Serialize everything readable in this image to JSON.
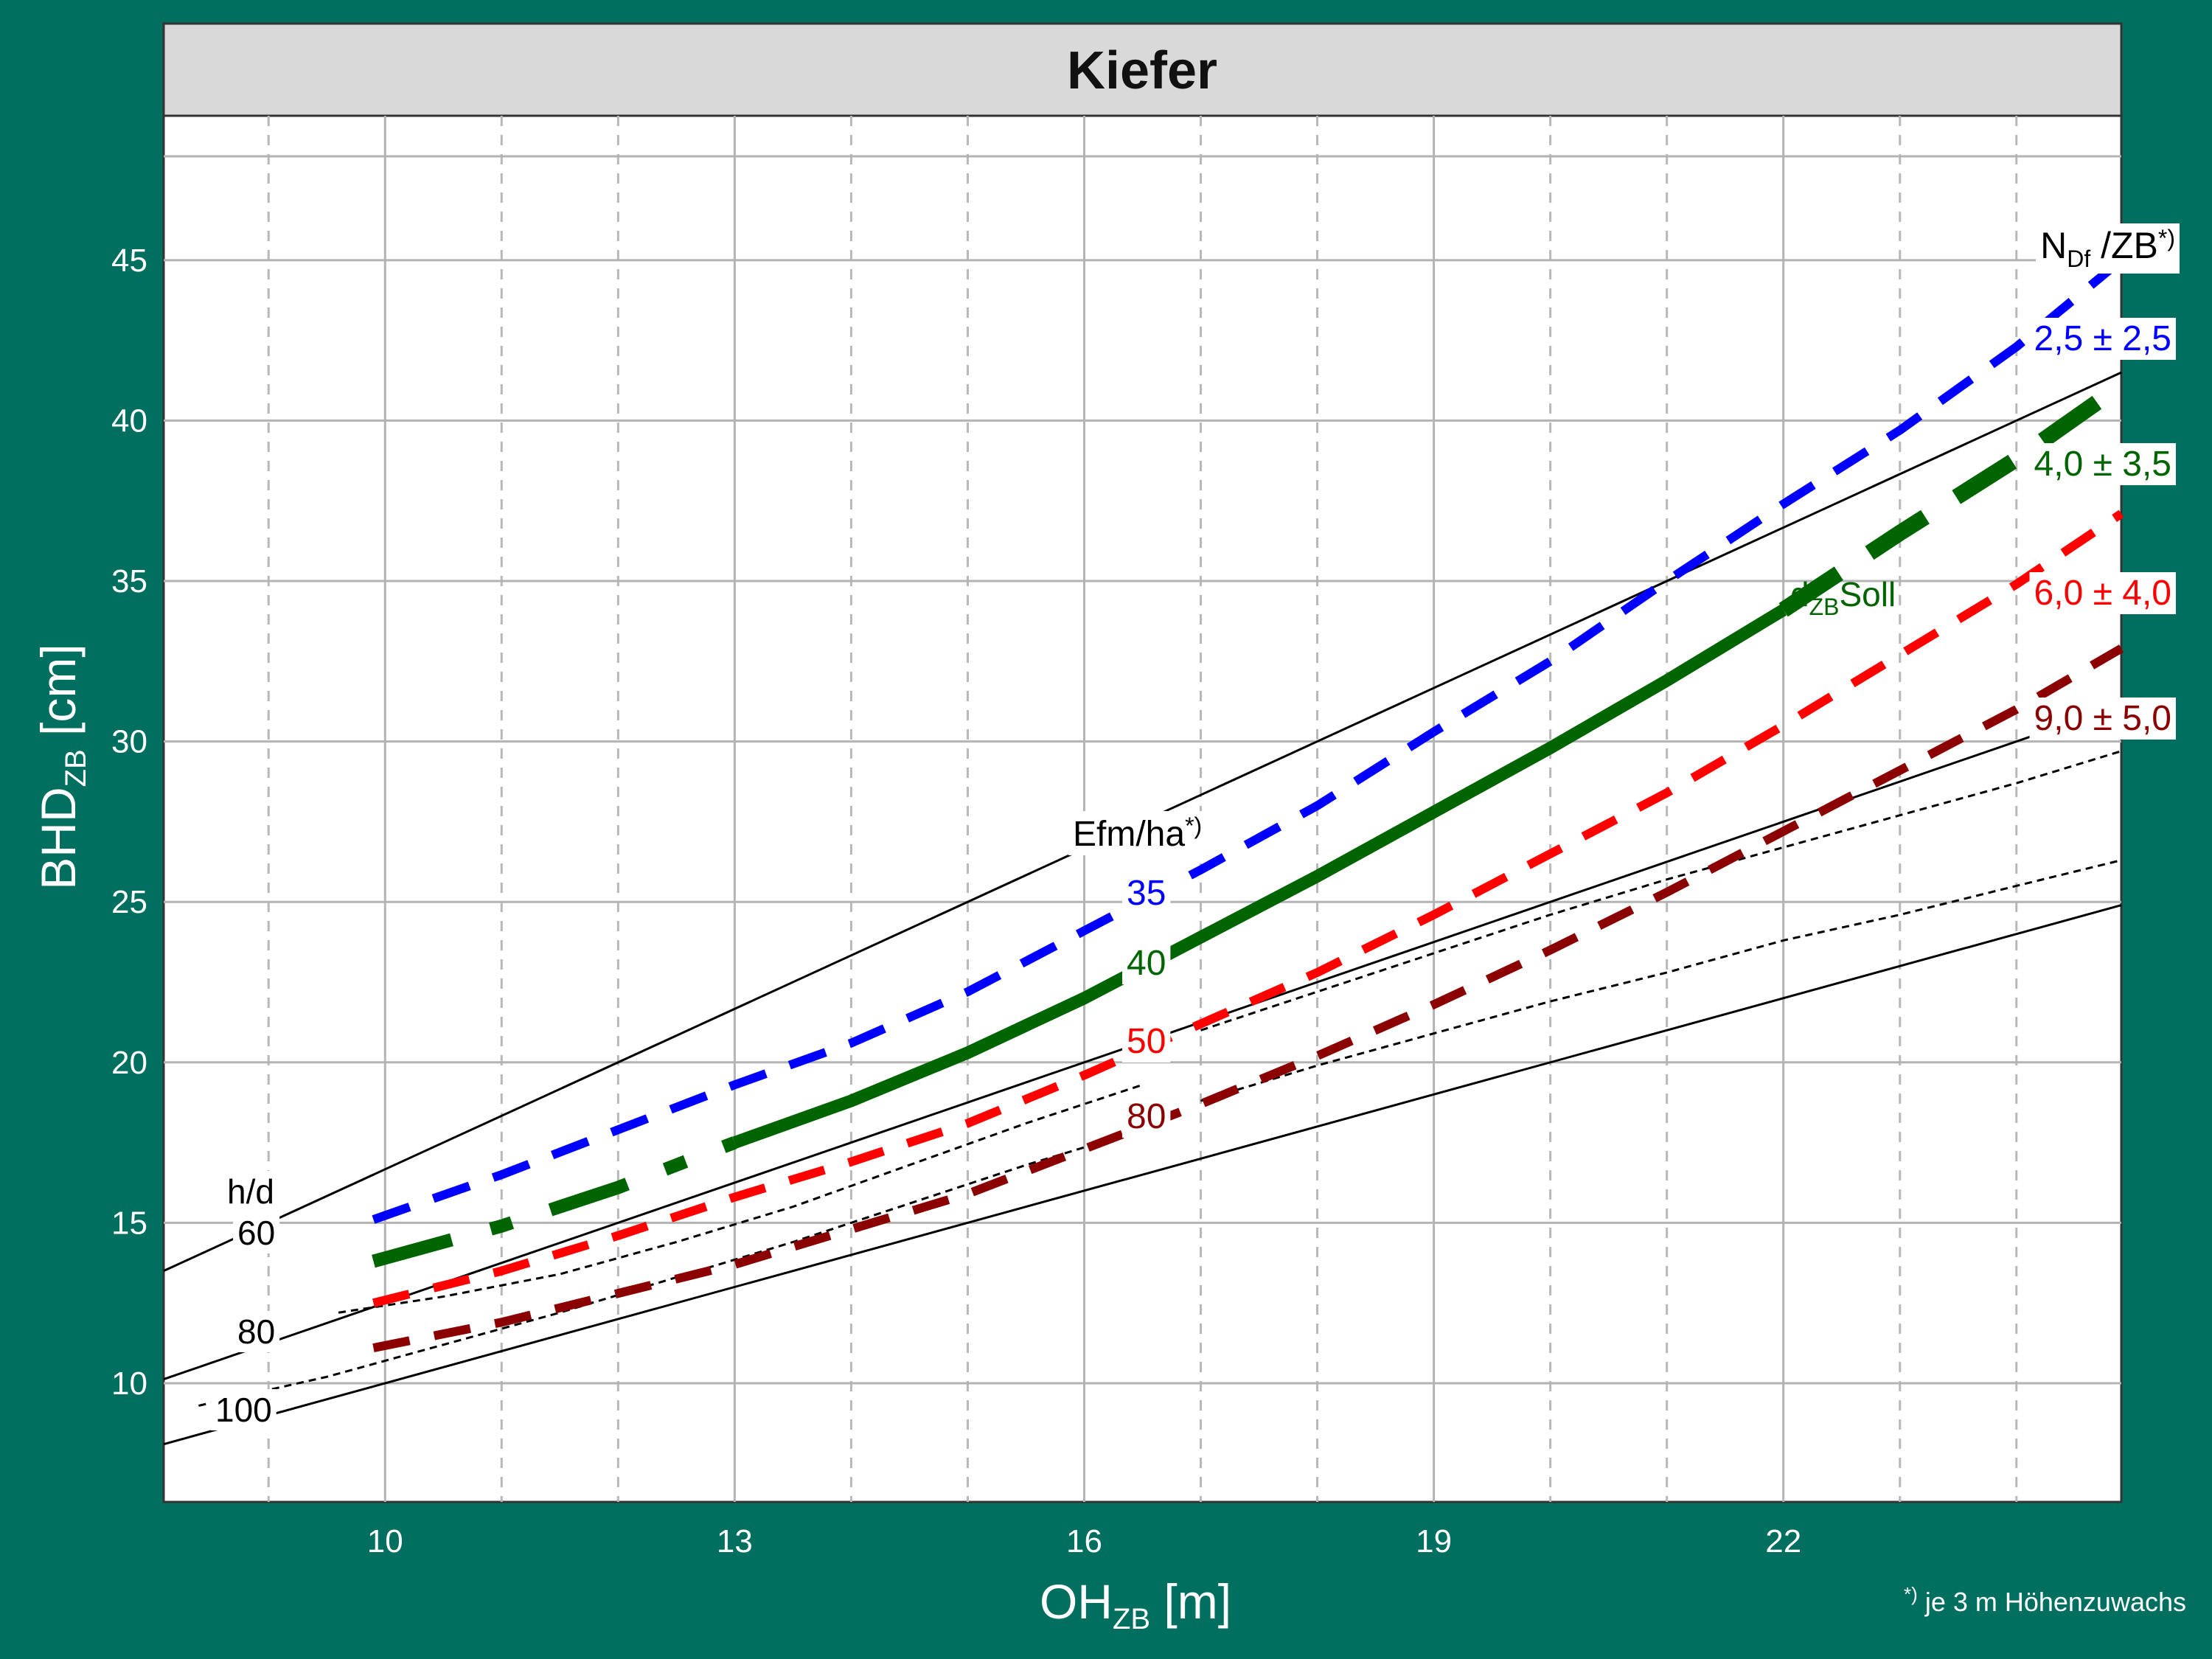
{
  "chart_data": {
    "type": "line",
    "title": "Kiefer",
    "xlabel": {
      "main": "OH",
      "sub": "ZB",
      "unit": " [m]"
    },
    "ylabel": {
      "main": "BHD",
      "sub": "ZB",
      "unit": " [cm]"
    },
    "footnote": {
      "sup": "*)",
      "text": " je 3 m Höhenzuwachs"
    },
    "xlim": [
      8.1,
      24.9
    ],
    "ylim": [
      6.3,
      49.5
    ],
    "x_ticks": [
      10,
      13,
      16,
      19,
      22
    ],
    "y_ticks": [
      10,
      15,
      20,
      25,
      30,
      35,
      40,
      45
    ],
    "grid": true,
    "hd_title": "h/d",
    "hd_lines": [
      {
        "label": "60",
        "points": [
          [
            8.1,
            13.5
          ],
          [
            24.9,
            41.5
          ]
        ]
      },
      {
        "label": "80",
        "points": [
          [
            8.1,
            10.125
          ],
          [
            24.9,
            31.125
          ]
        ]
      },
      {
        "label": "100",
        "points": [
          [
            8.1,
            8.1
          ],
          [
            24.9,
            24.9
          ]
        ]
      }
    ],
    "efm_title": {
      "main": "Efm/ha",
      "sup": "*)"
    },
    "efm_labels": [
      {
        "label": "35",
        "color": "#0000FF"
      },
      {
        "label": "40",
        "color": "#006400"
      },
      {
        "label": "50",
        "color": "#FF0000"
      },
      {
        "label": "80",
        "color": "#8B0000"
      }
    ],
    "efm_lines": [
      {
        "x": [
          9.6,
          10.5,
          11.5,
          12.5,
          13.5,
          14.5,
          15.5,
          16.5
        ],
        "y": [
          12.2,
          12.7,
          13.4,
          14.4,
          15.5,
          16.8,
          18.1,
          19.3
        ]
      },
      {
        "x": [
          17.0,
          18.0,
          19.0,
          20.0,
          21.0,
          22.0,
          23.0,
          24.0,
          24.9
        ],
        "y": [
          21.0,
          22.2,
          23.4,
          24.6,
          25.7,
          26.7,
          27.7,
          28.7,
          29.7
        ]
      },
      {
        "x": [
          8.4,
          9.5,
          10.5,
          11.5,
          12.5,
          13.5,
          14.5,
          15.5,
          16.5
        ],
        "y": [
          9.3,
          10.2,
          11.2,
          12.2,
          13.3,
          14.4,
          15.6,
          16.8,
          17.9
        ]
      },
      {
        "x": [
          17.0,
          18.0,
          19.0,
          20.0,
          21.0,
          22.0,
          23.0,
          24.0,
          24.9
        ],
        "y": [
          18.8,
          19.9,
          20.9,
          21.9,
          22.8,
          23.8,
          24.6,
          25.5,
          26.3
        ]
      }
    ],
    "series_title": {
      "main": "N",
      "sub": "Df",
      "rest": " /ZB",
      "sup": "*)"
    },
    "series": [
      {
        "name": "2,5 ± 2,5",
        "color": "#0000FF",
        "dash": "52 34",
        "width": 12,
        "x": [
          9.9,
          11.0,
          12.0,
          13.0,
          14.0,
          15.0,
          16.0,
          17.0,
          18.0,
          19.0,
          20.0,
          21.0,
          22.0,
          23.0,
          24.0,
          24.9
        ],
        "y": [
          15.1,
          16.5,
          17.9,
          19.3,
          20.6,
          22.2,
          24.1,
          26.0,
          28.0,
          30.3,
          32.5,
          35.0,
          37.4,
          39.7,
          42.3,
          45.0
        ]
      },
      {
        "name": "4,0 ± 3,5",
        "color": "#006400",
        "dash": "",
        "width": 17,
        "x": [
          9.9,
          11.0,
          12.0,
          13.0,
          14.0,
          15.0,
          16.0,
          17.0,
          18.0,
          19.0,
          20.0,
          21.0,
          22.0,
          23.0,
          24.0,
          24.9
        ],
        "y": [
          13.8,
          14.9,
          16.1,
          17.5,
          18.8,
          20.3,
          22.0,
          23.9,
          25.8,
          27.8,
          29.8,
          31.9,
          34.1,
          36.5,
          38.8,
          41.1
        ]
      },
      {
        "name": "6,0 ± 4,0",
        "color": "#FF0000",
        "dash": "50 34",
        "width": 12,
        "x": [
          9.9,
          11.0,
          12.0,
          13.0,
          14.0,
          15.0,
          16.0,
          17.0,
          18.0,
          19.0,
          20.0,
          21.0,
          22.0,
          23.0,
          24.0,
          24.9
        ],
        "y": [
          12.5,
          13.5,
          14.6,
          15.8,
          16.9,
          18.1,
          19.6,
          21.2,
          22.8,
          24.6,
          26.5,
          28.4,
          30.5,
          32.7,
          34.9,
          37.1
        ]
      },
      {
        "name": "9,0 ± 5,0",
        "color": "#8B0000",
        "dash": "50 34",
        "width": 12,
        "x": [
          9.9,
          11.0,
          12.0,
          13.0,
          14.0,
          15.0,
          16.0,
          17.0,
          18.0,
          19.0,
          20.0,
          21.0,
          22.0,
          23.0,
          24.0,
          24.9
        ],
        "y": [
          11.1,
          11.9,
          12.8,
          13.7,
          14.8,
          15.9,
          17.3,
          18.7,
          20.2,
          21.8,
          23.5,
          25.3,
          27.2,
          29.1,
          31.0,
          32.9
        ]
      }
    ],
    "dzb_label": {
      "main": "d",
      "sub": "ZB",
      "rest": "Soll"
    }
  }
}
